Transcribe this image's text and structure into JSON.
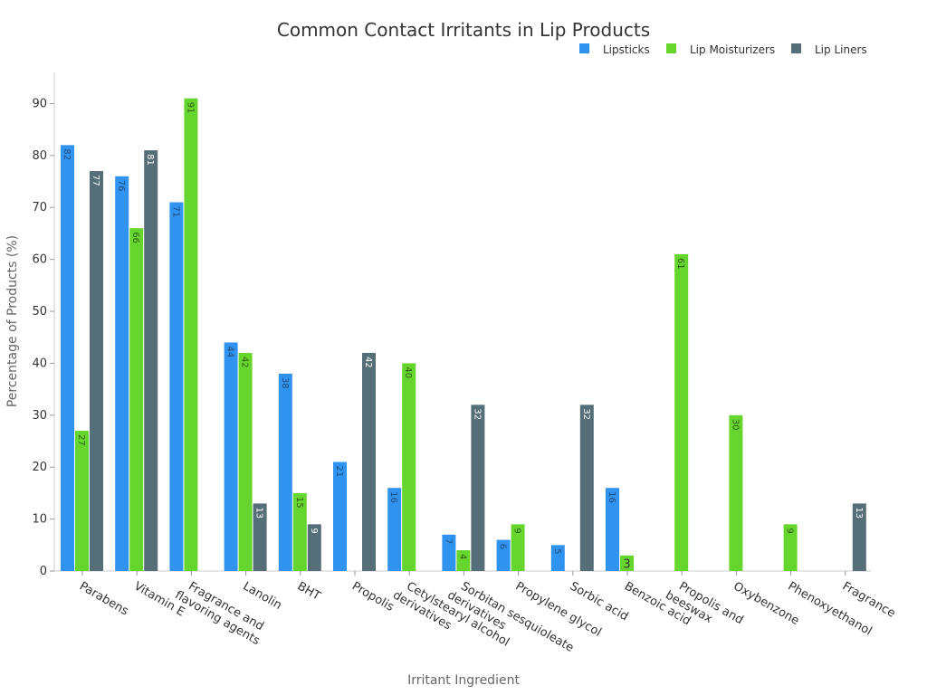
{
  "chart_data": {
    "type": "bar",
    "title": "Common Contact Irritants in Lip Products",
    "xlabel": "Irritant Ingredient",
    "ylabel": "Percentage of Products (%)",
    "ylim": [
      0,
      96
    ],
    "yticks": [
      0,
      10,
      20,
      30,
      40,
      50,
      60,
      70,
      80,
      90
    ],
    "grid": false,
    "legend_position": "top-right",
    "categories": [
      [
        "Parabens"
      ],
      [
        "Vitamin E"
      ],
      [
        "Fragrance and",
        "flavoring agents"
      ],
      [
        "Lanolin"
      ],
      [
        "BHT"
      ],
      [
        "Propolis"
      ],
      [
        "Cetylstearyl alcohol",
        "derivatives"
      ],
      [
        "Sorbitan sesquioleate",
        "derivatives"
      ],
      [
        "Propylene glycol"
      ],
      [
        "Sorbic acid"
      ],
      [
        "Benzoic acid"
      ],
      [
        "Propolis and",
        "beeswax"
      ],
      [
        "Oxybenzone"
      ],
      [
        "Phenoxyethanol"
      ],
      [
        "Fragrance"
      ]
    ],
    "series": [
      {
        "name": "Lipsticks",
        "color": "#3193f0",
        "label_color": "#1f4e79",
        "values": [
          82,
          76,
          71,
          44,
          38,
          21,
          16,
          7,
          6,
          5,
          16,
          null,
          null,
          null,
          null
        ]
      },
      {
        "name": "Lip Moisturizers",
        "color": "#66d62e",
        "label_color": "#2e5e12",
        "values": [
          27,
          66,
          91,
          42,
          15,
          null,
          40,
          4,
          9,
          null,
          3,
          61,
          30,
          9,
          null
        ]
      },
      {
        "name": "Lip Liners",
        "color": "#566e78",
        "label_color": "#ffffff",
        "values": [
          77,
          81,
          null,
          13,
          9,
          42,
          null,
          32,
          null,
          32,
          null,
          null,
          null,
          null,
          13
        ]
      }
    ]
  }
}
